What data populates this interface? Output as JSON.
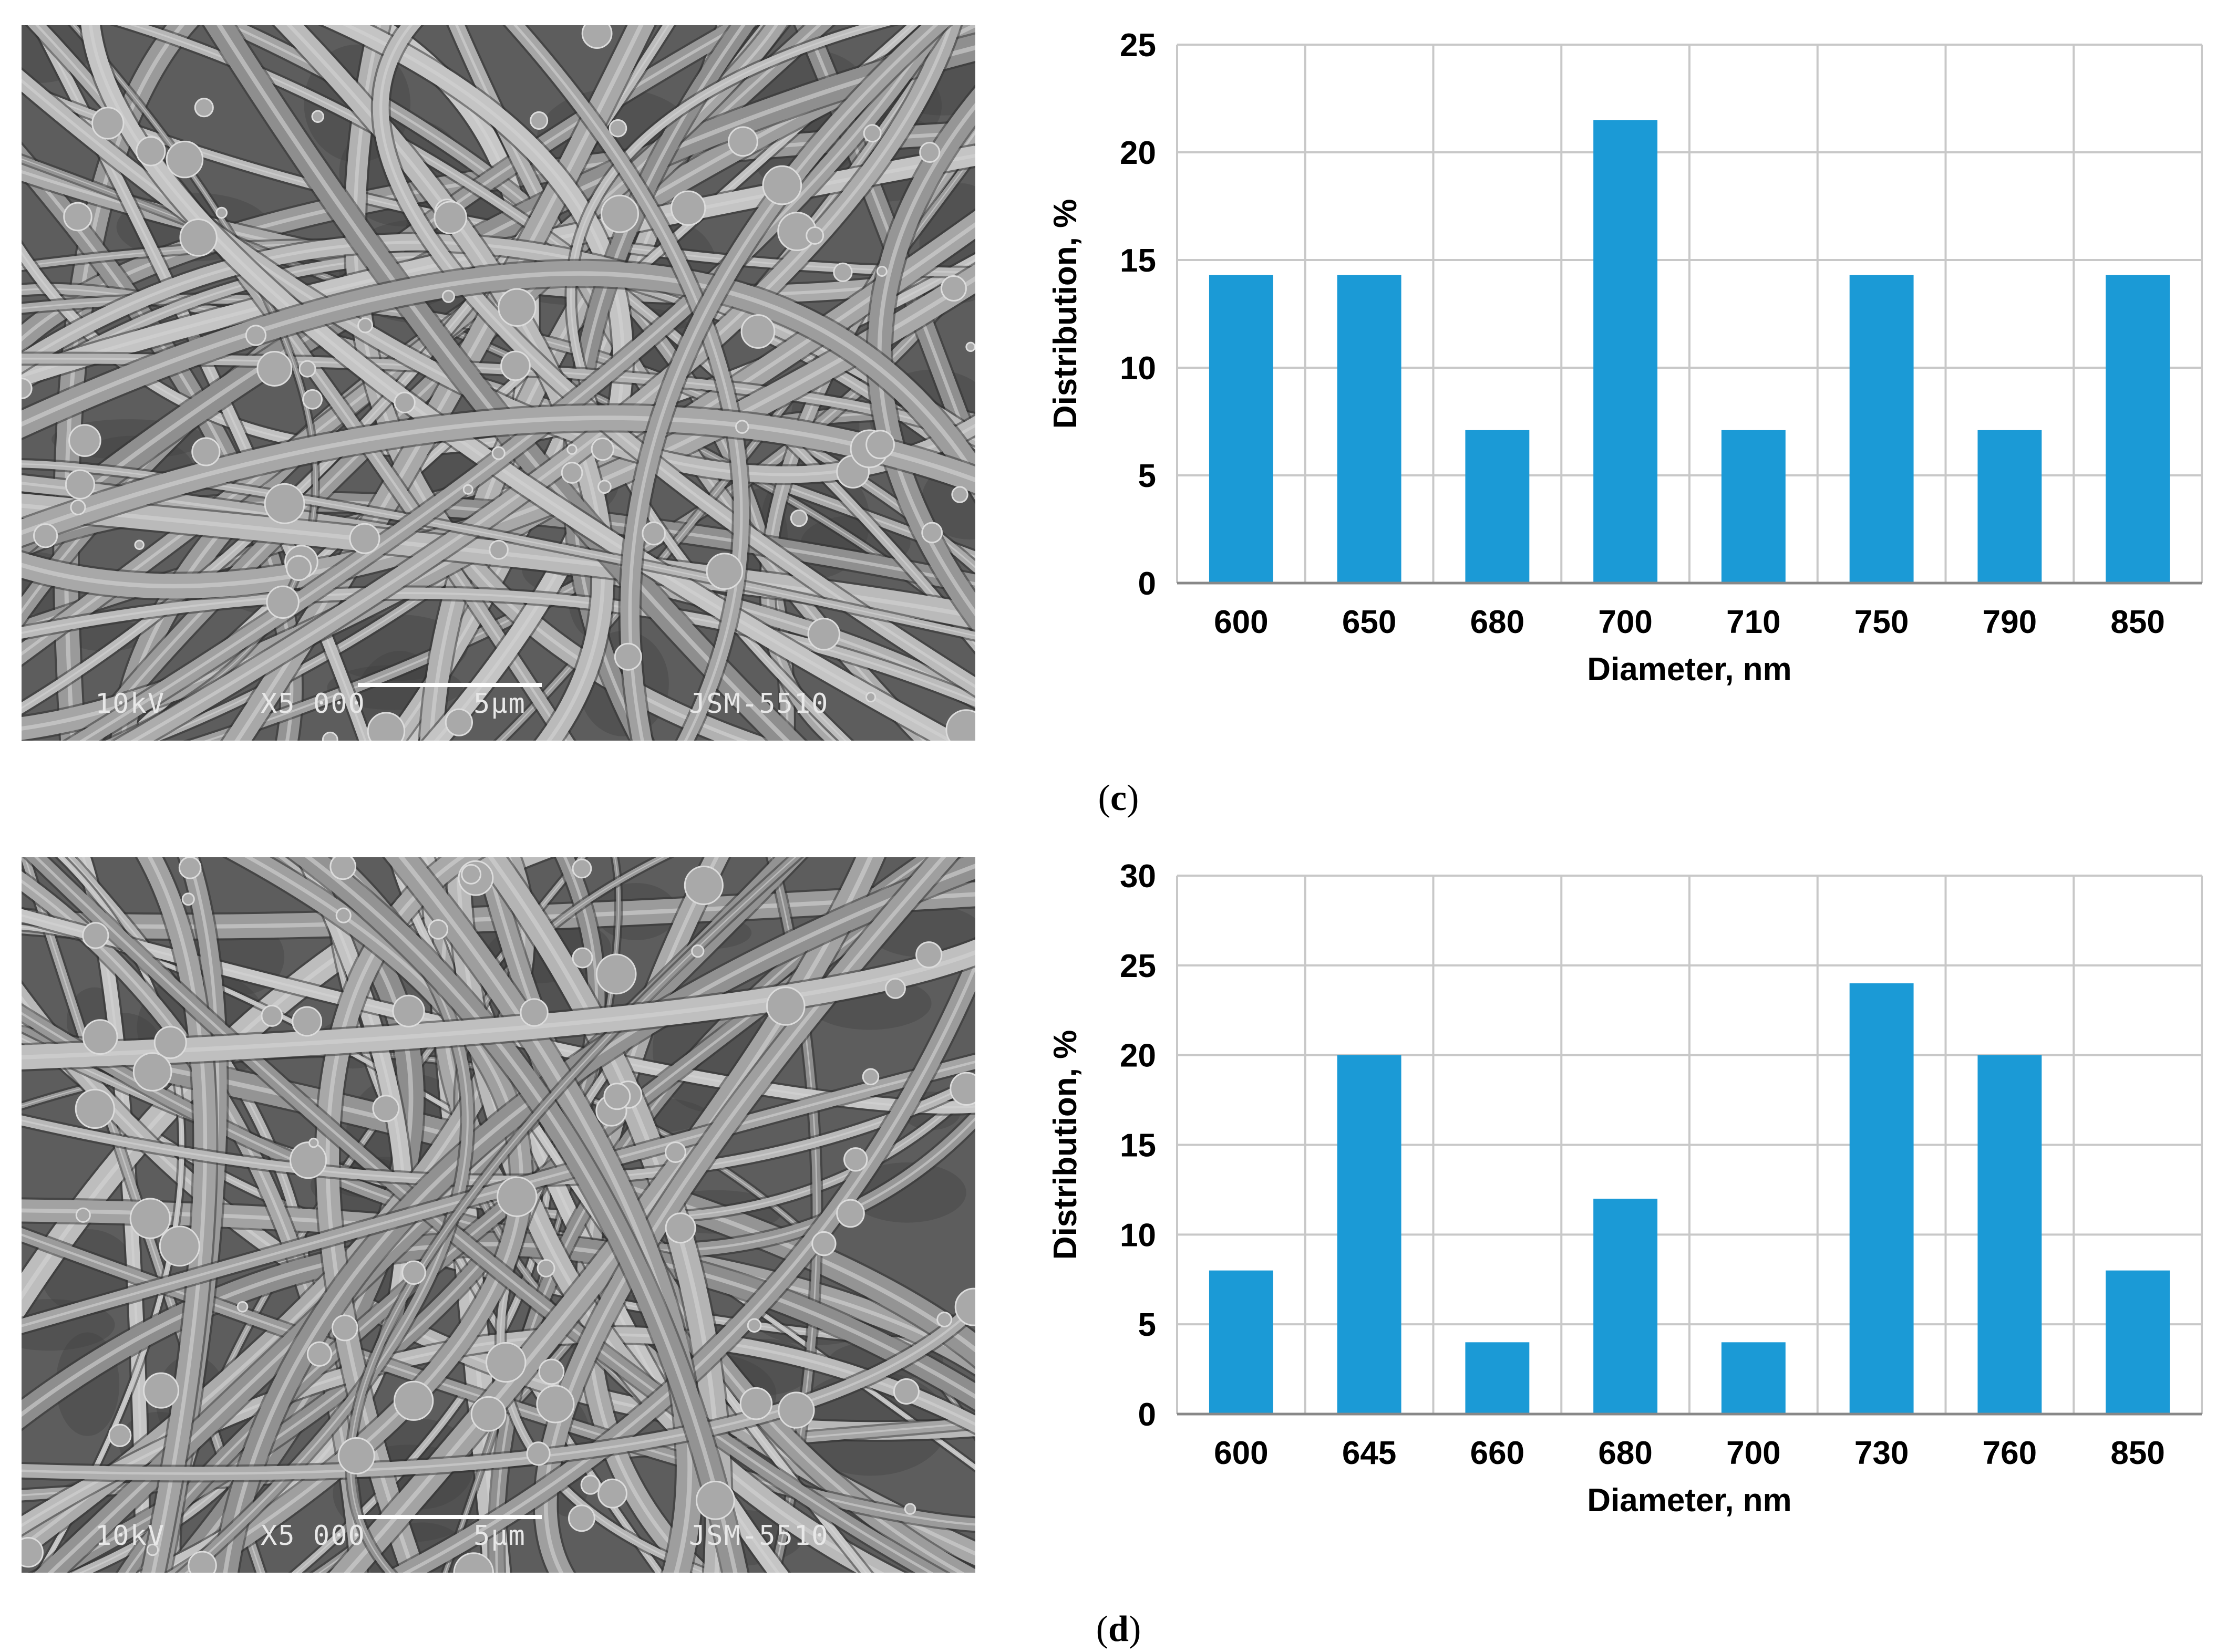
{
  "panels": [
    {
      "label_open": "(",
      "label_letter": "c",
      "label_close": ")",
      "sem_caption": {
        "voltage": "10kV",
        "magnification": "X5 000",
        "scale": "5μm",
        "instrument": "JSM-5510"
      }
    },
    {
      "label_open": "(",
      "label_letter": "d",
      "label_close": ")",
      "sem_caption": {
        "voltage": "10kV",
        "magnification": "X5 000",
        "scale": "5μm",
        "instrument": "JSM-5510"
      }
    }
  ],
  "colors": {
    "bar": "#1b9ad6",
    "grid": "#c8c8c8",
    "axis": "#888888",
    "text": "#000000"
  },
  "chart_data": [
    {
      "type": "bar",
      "categories": [
        "600",
        "650",
        "680",
        "700",
        "710",
        "750",
        "790",
        "850"
      ],
      "values": [
        14.3,
        14.3,
        7.1,
        21.5,
        7.1,
        14.3,
        7.1,
        14.3
      ],
      "xlabel": "Diameter, nm",
      "ylabel": "Distribution, %",
      "ylim": [
        0,
        25
      ],
      "yticks": [
        0,
        5,
        10,
        15,
        20,
        25
      ],
      "grid": true,
      "legend": "none"
    },
    {
      "type": "bar",
      "categories": [
        "600",
        "645",
        "660",
        "680",
        "700",
        "730",
        "760",
        "850"
      ],
      "values": [
        8,
        20,
        4,
        12,
        4,
        24,
        20,
        8
      ],
      "xlabel": "Diameter, nm",
      "ylabel": "Distribution, %",
      "ylim": [
        0,
        30
      ],
      "yticks": [
        0,
        5,
        10,
        15,
        20,
        25,
        30
      ],
      "grid": true,
      "legend": "none"
    }
  ]
}
